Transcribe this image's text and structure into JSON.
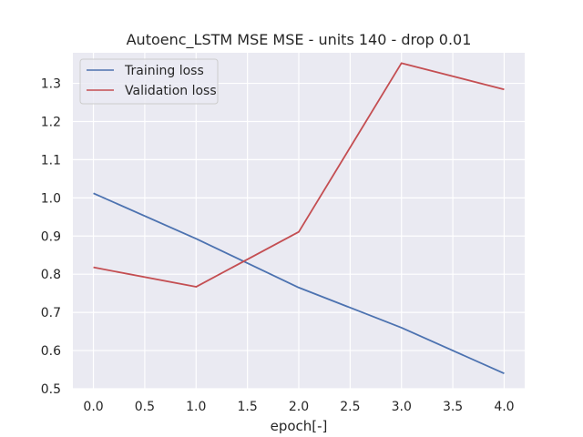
{
  "chart_data": {
    "type": "line",
    "title": "Autoenc_LSTM MSE MSE - units 140 - drop 0.01",
    "xlabel": "epoch[-]",
    "ylabel": "",
    "x": [
      0,
      1,
      2,
      3,
      4
    ],
    "xlim": [
      -0.2,
      4.2
    ],
    "ylim": [
      0.5,
      1.38
    ],
    "xticks": [
      "0.0",
      "0.5",
      "1.0",
      "1.5",
      "2.0",
      "2.5",
      "3.0",
      "3.5",
      "4.0"
    ],
    "xtick_values": [
      0,
      0.5,
      1,
      1.5,
      2,
      2.5,
      3,
      3.5,
      4
    ],
    "yticks": [
      "0.5",
      "0.6",
      "0.7",
      "0.8",
      "0.9",
      "1.0",
      "1.1",
      "1.2",
      "1.3"
    ],
    "ytick_values": [
      0.5,
      0.6,
      0.7,
      0.8,
      0.9,
      1.0,
      1.1,
      1.2,
      1.3
    ],
    "grid": true,
    "legend_position": "top-left",
    "background_color": "#eaeaf2",
    "series": [
      {
        "name": "Training loss",
        "color": "#4c72b0",
        "values": [
          1.012,
          0.893,
          0.765,
          0.66,
          0.54
        ]
      },
      {
        "name": "Validation loss",
        "color": "#c44e52",
        "values": [
          0.818,
          0.767,
          0.911,
          1.353,
          1.284
        ]
      }
    ]
  }
}
